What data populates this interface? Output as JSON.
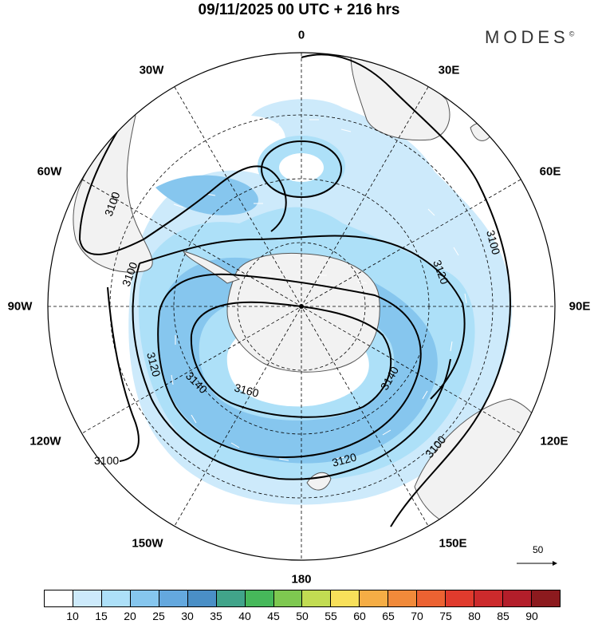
{
  "header": {
    "title": "09/11/2025  00 UTC  + 216 hrs",
    "brand": "MODES",
    "brand_mark": "©"
  },
  "map": {
    "projection": "polar-stereographic-south",
    "longitude_labels": [
      {
        "id": "0",
        "text": "0"
      },
      {
        "id": "30e",
        "text": "30E"
      },
      {
        "id": "60e",
        "text": "60E"
      },
      {
        "id": "90e",
        "text": "90E"
      },
      {
        "id": "120e",
        "text": "120E"
      },
      {
        "id": "150e",
        "text": "150E"
      },
      {
        "id": "180",
        "text": "180"
      },
      {
        "id": "150w",
        "text": "150W"
      },
      {
        "id": "120w",
        "text": "120W"
      },
      {
        "id": "90w",
        "text": "90W"
      },
      {
        "id": "60w",
        "text": "60W"
      },
      {
        "id": "30w",
        "text": "30W"
      }
    ],
    "contour_labels": [
      "3100",
      "3100",
      "3100",
      "3100",
      "3100",
      "3120",
      "3120",
      "3120",
      "3140",
      "3140",
      "3160"
    ],
    "reference_vector_label": "50",
    "colors": {
      "land": "#f2f2f2",
      "coast": "#555555",
      "grid": "#000000",
      "shade_15": "#cdeafb",
      "shade_20": "#ade0f8",
      "shade_25": "#86c6ee",
      "contour": "#000000"
    }
  },
  "colorbar": {
    "tick_labels": [
      "10",
      "15",
      "20",
      "25",
      "30",
      "35",
      "40",
      "45",
      "50",
      "55",
      "60",
      "65",
      "70",
      "75",
      "80",
      "85",
      "90"
    ],
    "colors": [
      "#ffffff",
      "#cdeafb",
      "#ade0f8",
      "#86c6ee",
      "#64a8de",
      "#4a8fc6",
      "#41a48a",
      "#46b85a",
      "#7ec850",
      "#c2dc52",
      "#f8e05a",
      "#f5ad45",
      "#f18a3a",
      "#ec6232",
      "#e03b2d",
      "#cc2a2c",
      "#b31e2a",
      "#8c1a1e"
    ]
  }
}
